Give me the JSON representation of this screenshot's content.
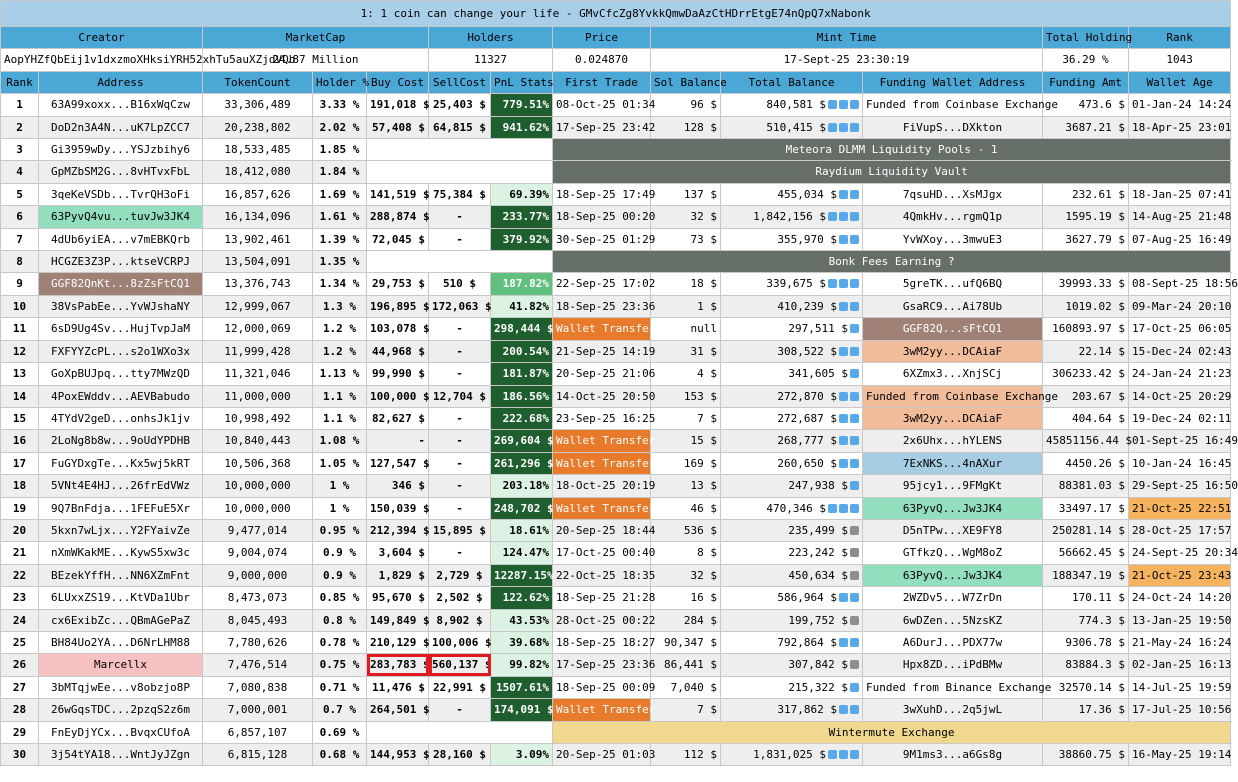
{
  "title": "1: 1 coin can change your life - GMvCfcZg8YvkkQmwDaAzCtHDrrEtgE74nQpQ7xNabonk",
  "summary_headers": {
    "creator": "Creator",
    "marketcap": "MarketCap",
    "holders": "Holders",
    "price": "Price",
    "mint_time": "Mint Time",
    "total_holding": "Total Holding",
    "rank": "Rank"
  },
  "summary": {
    "creator": "AopYHZfQbEij1v1dxzmoXHksiYRH52xhTu5auXZjdVQb",
    "marketcap": "24.87 Million",
    "holders": "11327",
    "price": "0.024870",
    "mint_time": "17-Sept-25 23:30:19",
    "total_holding": "36.29 %",
    "rank": "1043"
  },
  "columns": {
    "rank": "Rank",
    "address": "Address",
    "tokencount": "TokenCount",
    "holder": "Holder %",
    "buy": "Buy Cost",
    "sell": "SellCost",
    "pnl": "PnL Stats",
    "first": "First Trade",
    "sol": "Sol Balance",
    "total": "Total Balance",
    "funding": "Funding Wallet Address",
    "amt": "Funding Amt",
    "age": "Wallet Age"
  },
  "rows": [
    {
      "rank": "1",
      "address": "63A99xoxx...B16xWqCzw",
      "tokencount": "33,306,489",
      "holder": "3.33 %",
      "buy": "191,018 $",
      "sell": "25,403 $",
      "pnl": "779.51%",
      "first": "08-Oct-25 01:34",
      "sol": "96 $",
      "total": "840,581 $",
      "funding": "Funded from Coinbase Exchange",
      "amt": "473.6 $",
      "age": "01-Jan-24 14:24"
    },
    {
      "rank": "2",
      "address": "DoD2n3A4N...uK7LpZCC7",
      "tokencount": "20,238,802",
      "holder": "2.02 %",
      "buy": "57,408 $",
      "sell": "64,815 $",
      "pnl": "941.62%",
      "first": "17-Sep-25 23:42",
      "sol": "128 $",
      "total": "510,415 $",
      "funding": "FiVupS...DXkton",
      "amt": "3687.21 $",
      "age": "18-Apr-25 23:01"
    },
    {
      "rank": "3",
      "address": "Gi3959wDy...YSJzbihy6",
      "tokencount": "18,533,485",
      "holder": "1.85 %",
      "pool": "Meteora DLMM Liquidity Pools - 1"
    },
    {
      "rank": "4",
      "address": "GpMZbSM2G...8vHTvxFbL",
      "tokencount": "18,412,080",
      "holder": "1.84 %",
      "pool": "Raydium Liquidity Vault"
    },
    {
      "rank": "5",
      "address": "3qeKeVSDb...TvrQH3oFi",
      "tokencount": "16,857,626",
      "holder": "1.69 %",
      "buy": "141,519 $",
      "sell": "75,384 $",
      "pnl": "69.39%",
      "first": "18-Sep-25 17:49",
      "sol": "137 $",
      "total": "455,034 $",
      "funding": "7qsuHD...XsMJgx",
      "amt": "232.61 $",
      "age": "18-Jan-25 07:41"
    },
    {
      "rank": "6",
      "address": "63PyvQ4vu...tuvJw3JK4",
      "tokencount": "16,134,096",
      "holder": "1.61 %",
      "buy": "288,874 $",
      "sell": "-",
      "pnl": "233.77%",
      "first": "18-Sep-25 00:20",
      "sol": "32 $",
      "total": "1,842,156 $",
      "funding": "4QmkHv...rgmQ1p",
      "amt": "1595.19 $",
      "age": "14-Aug-25 21:48"
    },
    {
      "rank": "7",
      "address": "4dUb6yiEA...v7mEBKQrb",
      "tokencount": "13,902,461",
      "holder": "1.39 %",
      "buy": "72,045 $",
      "sell": "-",
      "pnl": "379.92%",
      "first": "30-Sep-25 01:29",
      "sol": "73 $",
      "total": "355,970 $",
      "funding": "YvWXoy...3mwuE3",
      "amt": "3627.79 $",
      "age": "07-Aug-25 16:49"
    },
    {
      "rank": "8",
      "address": "HCGZE3Z3P...ktseVCRPJ",
      "tokencount": "13,504,091",
      "holder": "1.35 %",
      "pool": "Bonk Fees Earning ?"
    },
    {
      "rank": "9",
      "address": "GGF82QnKt...8zZsFtCQ1",
      "tokencount": "13,376,743",
      "holder": "1.34 %",
      "buy": "29,753 $",
      "sell": "510 $",
      "pnl": "187.82%",
      "first": "22-Sep-25 17:02",
      "sol": "18 $",
      "total": "339,675 $",
      "funding": "5greTK...ufQ6BQ",
      "amt": "39993.33 $",
      "age": "08-Sept-25 18:56"
    },
    {
      "rank": "10",
      "address": "38VsPabEe...YvWJshaNY",
      "tokencount": "12,999,067",
      "holder": "1.3 %",
      "buy": "196,895 $",
      "sell": "172,063 $",
      "pnl": "41.82%",
      "first": "18-Sep-25 23:36",
      "sol": "1 $",
      "total": "410,239 $",
      "funding": "GsaRC9...Ai78Ub",
      "amt": "1019.02 $",
      "age": "09-Mar-24 20:10"
    },
    {
      "rank": "11",
      "address": "6sD9Ug4Sv...HujTvpJaM",
      "tokencount": "12,000,069",
      "holder": "1.2 %",
      "buy": "103,078 $",
      "sell": "-",
      "pnl": "298,444 $",
      "first": "Wallet Transfer",
      "sol": "null",
      "total": "297,511 $",
      "funding": "GGF82Q...sFtCQ1",
      "amt": "160893.97 $",
      "age": "17-Oct-25 06:05"
    },
    {
      "rank": "12",
      "address": "FXFYYZcPL...s2o1WXo3x",
      "tokencount": "11,999,428",
      "holder": "1.2 %",
      "buy": "44,968 $",
      "sell": "-",
      "pnl": "200.54%",
      "first": "21-Sep-25 14:19",
      "sol": "31 $",
      "total": "308,522 $",
      "funding": "3wM2yy...DCAiaF",
      "amt": "22.14 $",
      "age": "15-Dec-24 02:43"
    },
    {
      "rank": "13",
      "address": "GoXpBUJpq...tty7MWzQD",
      "tokencount": "11,321,046",
      "holder": "1.13 %",
      "buy": "99,990 $",
      "sell": "-",
      "pnl": "181.87%",
      "first": "20-Sep-25 21:06",
      "sol": "4 $",
      "total": "341,605 $",
      "funding": "6XZmx3...XnjSCj",
      "amt": "306233.42 $",
      "age": "24-Jan-24 21:23"
    },
    {
      "rank": "14",
      "address": "4PoxEWddv...AEVBabudo",
      "tokencount": "11,000,000",
      "holder": "1.1 %",
      "buy": "100,000 $",
      "sell": "12,704 $",
      "pnl": "186.56%",
      "first": "14-Oct-25 20:50",
      "sol": "153 $",
      "total": "272,870 $",
      "funding": "Funded from Coinbase Exchange",
      "amt": "203.67 $",
      "age": "14-Oct-25 20:29"
    },
    {
      "rank": "15",
      "address": "4TYdV2geD...onhsJk1jv",
      "tokencount": "10,998,492",
      "holder": "1.1 %",
      "buy": "82,627 $",
      "sell": "-",
      "pnl": "222.68%",
      "first": "23-Sep-25 16:25",
      "sol": "7 $",
      "total": "272,687 $",
      "funding": "3wM2yy...DCAiaF",
      "amt": "404.64 $",
      "age": "19-Dec-24 02:11"
    },
    {
      "rank": "16",
      "address": "2LoNg8b8w...9oUdYPDHB",
      "tokencount": "10,840,443",
      "holder": "1.08 %",
      "buy": "-",
      "sell": "-",
      "pnl": "269,604 $",
      "first": "Wallet Transfer",
      "sol": "15 $",
      "total": "268,777 $",
      "funding": "2x6Uhx...hYLENS",
      "amt": "45851156.44 $",
      "age": "01-Sept-25 16:49"
    },
    {
      "rank": "17",
      "address": "FuGYDxgTe...Kx5wj5kRT",
      "tokencount": "10,506,368",
      "holder": "1.05 %",
      "buy": "127,547 $",
      "sell": "-",
      "pnl": "261,296 $",
      "first": "Wallet Transfer",
      "sol": "169 $",
      "total": "260,650 $",
      "funding": "7ExNKS...4nAXur",
      "amt": "4450.26 $",
      "age": "10-Jan-24 16:45"
    },
    {
      "rank": "18",
      "address": "5VNt4E4HJ...26frEdVWz",
      "tokencount": "10,000,000",
      "holder": "1 %",
      "buy": "346 $",
      "sell": "-",
      "pnl": "203.18%",
      "first": "18-Oct-25 20:19",
      "sol": "13 $",
      "total": "247,938 $",
      "funding": "95jcy1...9FMgKt",
      "amt": "88381.03 $",
      "age": "29-Sept-25 16:50"
    },
    {
      "rank": "19",
      "address": "9Q7BnFdja...1FEFuE5Xr",
      "tokencount": "10,000,000",
      "holder": "1 %",
      "buy": "150,039 $",
      "sell": "-",
      "pnl": "248,702 $",
      "first": "Wallet Transfer",
      "sol": "46 $",
      "total": "470,346 $",
      "funding": "63PyvQ...Jw3JK4",
      "amt": "33497.17 $",
      "age": "21-Oct-25 22:51"
    },
    {
      "rank": "20",
      "address": "5kxn7wLjx...Y2FYaivZe",
      "tokencount": "9,477,014",
      "holder": "0.95 %",
      "buy": "212,394 $",
      "sell": "15,895 $",
      "pnl": "18.61%",
      "first": "20-Sep-25 18:44",
      "sol": "536 $",
      "total": "235,499 $",
      "funding": "D5nTPw...XE9FY8",
      "amt": "250281.14 $",
      "age": "28-Oct-25 17:57"
    },
    {
      "rank": "21",
      "address": "nXmWKakME...KywS5xw3c",
      "tokencount": "9,004,074",
      "holder": "0.9 %",
      "buy": "3,604 $",
      "sell": "-",
      "pnl": "124.47%",
      "first": "17-Oct-25 00:40",
      "sol": "8 $",
      "total": "223,242 $",
      "funding": "GTfkzQ...WgM8oZ",
      "amt": "56662.45 $",
      "age": "24-Sept-25 20:34"
    },
    {
      "rank": "22",
      "address": "BEzekYffH...NN6XZmFnt",
      "tokencount": "9,000,000",
      "holder": "0.9 %",
      "buy": "1,829 $",
      "sell": "2,729 $",
      "pnl": "12287.15%",
      "first": "22-Oct-25 18:35",
      "sol": "32 $",
      "total": "450,634 $",
      "funding": "63PyvQ...Jw3JK4",
      "amt": "188347.19 $",
      "age": "21-Oct-25 23:43"
    },
    {
      "rank": "23",
      "address": "6LUxxZS19...KtVDa1Ubr",
      "tokencount": "8,473,073",
      "holder": "0.85 %",
      "buy": "95,670 $",
      "sell": "2,502 $",
      "pnl": "122.62%",
      "first": "18-Sep-25 21:28",
      "sol": "16 $",
      "total": "586,964 $",
      "funding": "2WZDv5...W7ZrDn",
      "amt": "170.11 $",
      "age": "24-Oct-24 14:20"
    },
    {
      "rank": "24",
      "address": "cx6ExibZc...QBmAGePaZ",
      "tokencount": "8,045,493",
      "holder": "0.8 %",
      "buy": "149,849 $",
      "sell": "8,902 $",
      "pnl": "43.53%",
      "first": "28-Oct-25 00:22",
      "sol": "284 $",
      "total": "199,752 $",
      "funding": "6wDZen...5NzsKZ",
      "amt": "774.3 $",
      "age": "13-Jan-25 19:50"
    },
    {
      "rank": "25",
      "address": "BH84Uo2YA...D6NrLHM88",
      "tokencount": "7,780,626",
      "holder": "0.78 %",
      "buy": "210,129 $",
      "sell": "100,006 $",
      "pnl": "39.68%",
      "first": "18-Sep-25 18:27",
      "sol": "90,347 $",
      "total": "792,864 $",
      "funding": "A6DurJ...PDX77w",
      "amt": "9306.78 $",
      "age": "21-May-24 16:24"
    },
    {
      "rank": "26",
      "address": "Marcellx",
      "tokencount": "7,476,514",
      "holder": "0.75 %",
      "buy": "283,783 $",
      "sell": "560,137 $",
      "pnl": "99.82%",
      "first": "17-Sep-25 23:36",
      "sol": "86,441 $",
      "total": "307,842 $",
      "funding": "Hpx8ZD...iPdBMw",
      "amt": "83884.3 $",
      "age": "02-Jan-25 16:13"
    },
    {
      "rank": "27",
      "address": "3bMTqjwEe...v8obzjo8P",
      "tokencount": "7,080,838",
      "holder": "0.71 %",
      "buy": "11,476 $",
      "sell": "22,991 $",
      "pnl": "1507.61%",
      "first": "18-Sep-25 00:09",
      "sol": "7,040 $",
      "total": "215,322 $",
      "funding": "Funded from Binance Exchange",
      "amt": "32570.14 $",
      "age": "14-Jul-25 19:59"
    },
    {
      "rank": "28",
      "address": "26wGqsTDC...2pzqS2z6m",
      "tokencount": "7,000,001",
      "holder": "0.7 %",
      "buy": "264,501 $",
      "sell": "-",
      "pnl": "174,091 $",
      "first": "Wallet Transfer",
      "sol": "7 $",
      "total": "317,862 $",
      "funding": "3wXuhD...2q5jwL",
      "amt": "17.36 $",
      "age": "17-Jul-25 10:56"
    },
    {
      "rank": "29",
      "address": "FnEyDjYCx...BvqxCUfoA",
      "tokencount": "6,857,107",
      "holder": "0.69 %",
      "pool": "Wintermute Exchange"
    },
    {
      "rank": "30",
      "address": "3j54tYA18...WntJyJZgn",
      "tokencount": "6,815,128",
      "holder": "0.68 %",
      "buy": "144,953 $",
      "sell": "28,160 $",
      "pnl": "3.09%",
      "first": "20-Sep-25 01:03",
      "sol": "112 $",
      "total": "1,831,025 $",
      "funding": "9M1ms3...a6Gs8g",
      "amt": "38860.75 $",
      "age": "16-May-25 19:14"
    }
  ],
  "styles": {
    "pnl_class": [
      "pnl-dark",
      "pnl-dark",
      "",
      "",
      "pnl-light",
      "pnl-dark",
      "pnl-dark",
      "",
      "pnl-mid",
      "pnl-light",
      "pnl-dark",
      "pnl-dark",
      "pnl-dark",
      "pnl-dark",
      "pnl-dark",
      "pnl-dark",
      "pnl-dark",
      "pnl-light",
      "pnl-dark",
      "pnl-light",
      "pnl-light",
      "pnl-dark",
      "pnl-dark",
      "pnl-light",
      "pnl-light",
      "pnl-light",
      "pnl-dark",
      "pnl-dark",
      "",
      "pnl-light"
    ],
    "icons": [
      "bbb",
      "bbb",
      "",
      "",
      "bb",
      "bbb",
      "bb",
      "",
      "bbb",
      "bb",
      "b",
      "bb",
      "b",
      "bb",
      "bb",
      "bb",
      "bb",
      "b",
      "bbb",
      "g",
      "g",
      "g",
      "bb",
      "g",
      "bb",
      "g",
      "b",
      "bb",
      "",
      "bbb"
    ],
    "addr_hl": {
      "6": "hl-teal",
      "9": "hl-brown",
      "26": "hl-pink"
    },
    "fund_hl": {
      "11": "hl-brown",
      "12": "hl-salmon",
      "14": "hl-salmon",
      "15": "hl-salmon",
      "17": "hl-blue",
      "19": "hl-teal",
      "22": "hl-teal"
    },
    "age_hl": {
      "19": "hl-orange",
      "22": "hl-orange"
    },
    "pool_class": {
      "3": "pool",
      "4": "pool",
      "8": "pool",
      "29": "wm"
    }
  }
}
